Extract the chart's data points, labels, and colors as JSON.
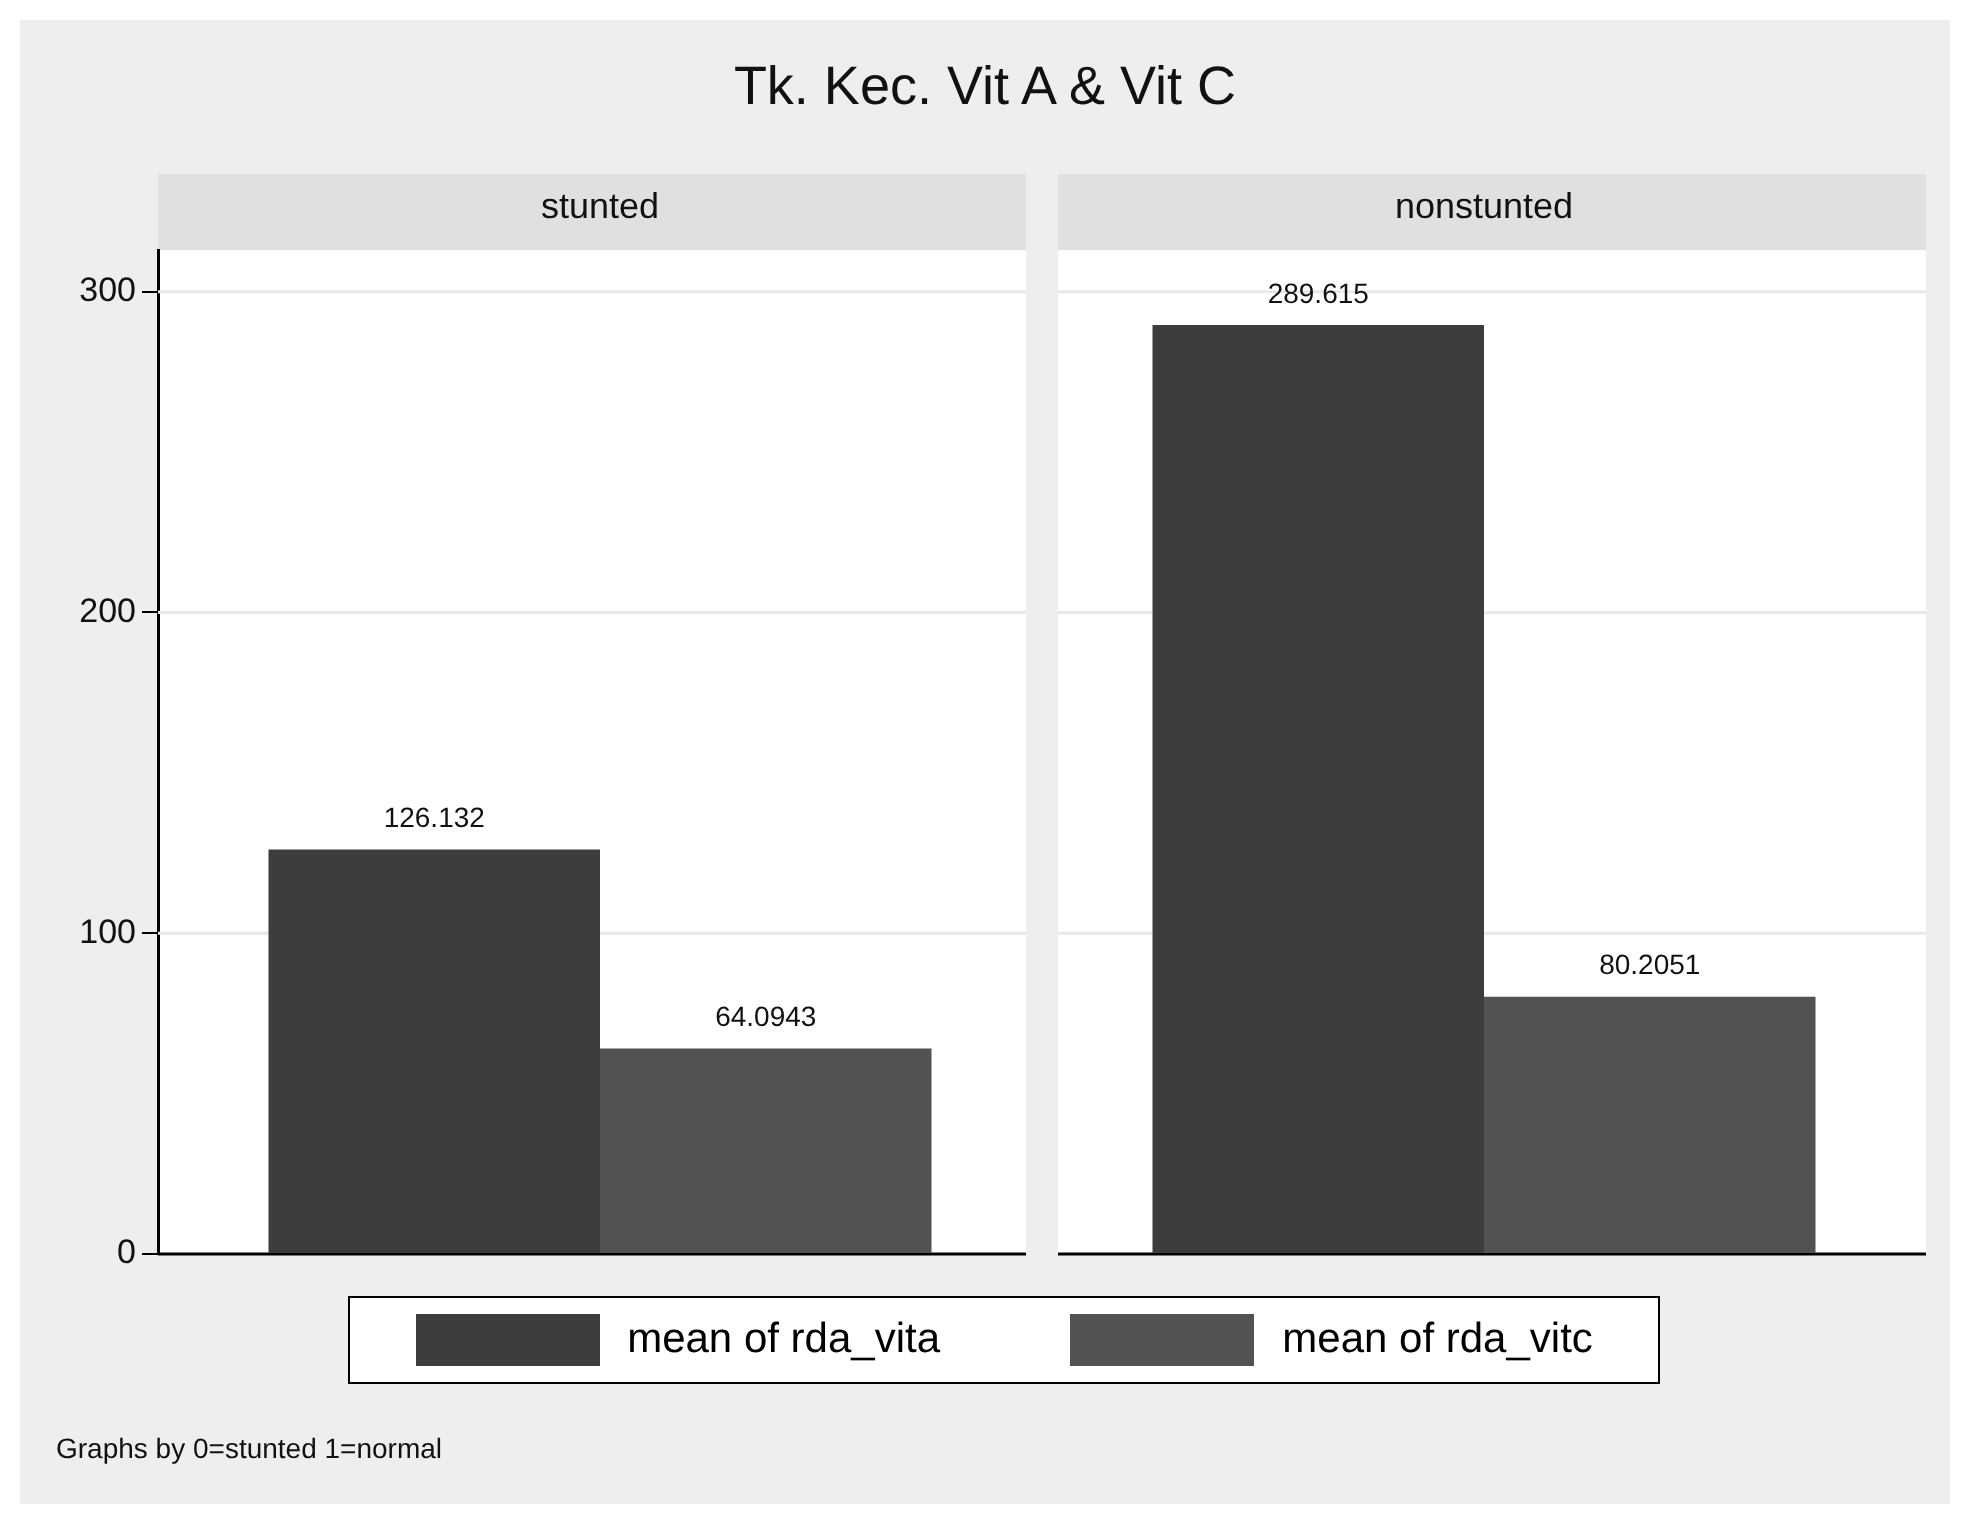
{
  "chart_data": {
    "type": "bar",
    "title": "Tk. Kec. Vit A & Vit C",
    "categories": [
      "stunted",
      "nonstunted"
    ],
    "series": [
      {
        "name": "mean of rda_vita",
        "color": "#3d3d3d",
        "values": [
          126.132,
          289.615
        ]
      },
      {
        "name": "mean of rda_vitc",
        "color": "#525252",
        "values": [
          64.0943,
          80.2051
        ]
      }
    ],
    "ylim": [
      0,
      313
    ],
    "yticks": [
      0,
      100,
      200,
      300
    ],
    "grid": "y",
    "data_labels": true,
    "legend": "bottom",
    "annotations": [
      "Graphs by 0=stunted  1=normal"
    ]
  }
}
